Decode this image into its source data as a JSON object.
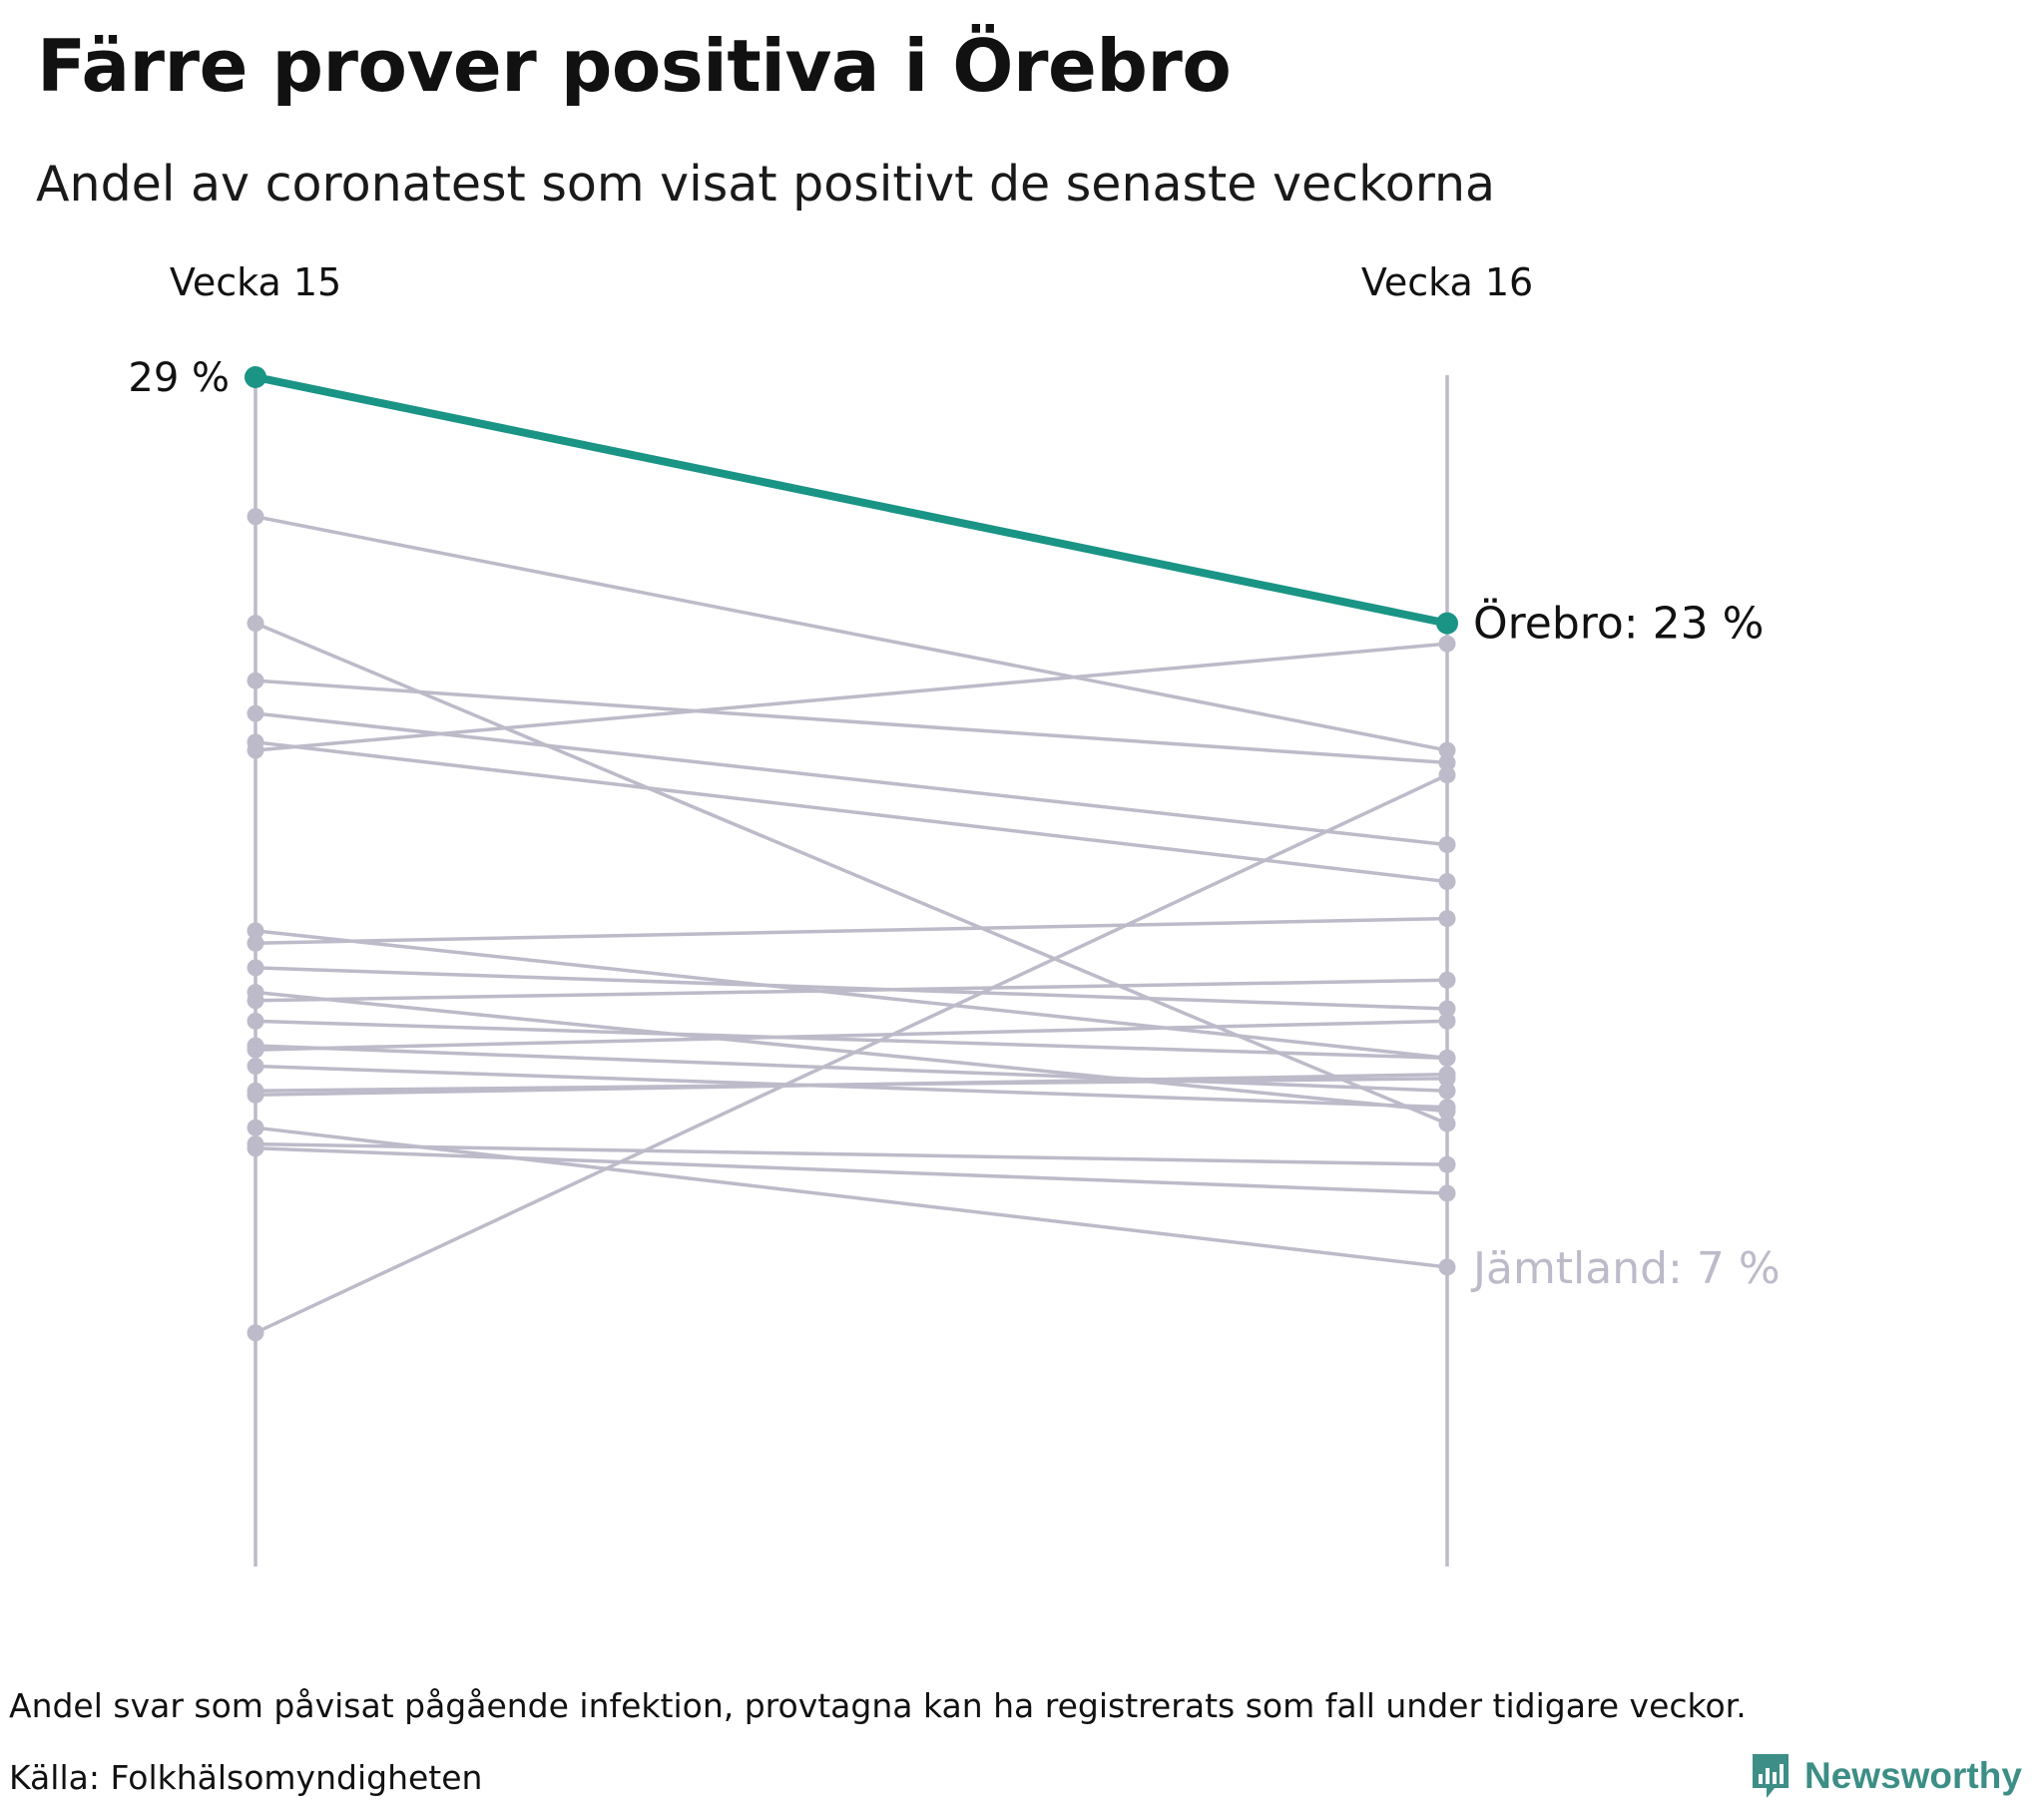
{
  "header": {
    "title": "Färre prover positiva i Örebro",
    "subtitle": "Andel av coronatest som visat positivt de senaste veckorna"
  },
  "footer": {
    "note": "Andel svar som påvisat pågående infektion, provtagna kan ha registrerats som fall under tidigare veckor.",
    "source": "Källa: Folkhälsomyndigheten",
    "brand": "Newsworthy"
  },
  "colors": {
    "highlight": "#1a9485",
    "other": "#bdbac9",
    "axis": "#bdbac9",
    "brand": "#3c8e86"
  },
  "chart_data": {
    "type": "slope",
    "title": "Färre prover positiva i Örebro",
    "subtitle": "Andel av coronatest som visat positivt de senaste veckorna",
    "x": [
      "Vecka 15",
      "Vecka 16"
    ],
    "ylim": [
      0,
      29
    ],
    "unit": "%",
    "start_label": "29 %",
    "highlight": {
      "name": "Örebro",
      "values": [
        29,
        23
      ],
      "label": "Örebro: 23 %"
    },
    "min_series": {
      "name": "Jämtland",
      "label": "Jämtland: 7 %"
    },
    "series": [
      {
        "values": [
          25.6,
          19.9
        ]
      },
      {
        "values": [
          23.0,
          10.8
        ]
      },
      {
        "values": [
          21.6,
          19.6
        ]
      },
      {
        "values": [
          20.8,
          17.6
        ]
      },
      {
        "values": [
          20.1,
          16.7
        ]
      },
      {
        "values": [
          19.9,
          22.5
        ]
      },
      {
        "values": [
          15.5,
          12.4
        ]
      },
      {
        "values": [
          15.2,
          15.8
        ]
      },
      {
        "values": [
          14.0,
          11.1
        ]
      },
      {
        "values": [
          13.8,
          14.3
        ]
      },
      {
        "values": [
          13.3,
          12.4
        ]
      },
      {
        "values": [
          12.7,
          11.6
        ]
      },
      {
        "values": [
          12.6,
          13.3
        ]
      },
      {
        "values": [
          11.5,
          12.0
        ]
      },
      {
        "values": [
          10.7,
          7.3
        ]
      },
      {
        "values": [
          14.6,
          13.6
        ]
      },
      {
        "values": [
          11.6,
          11.9
        ]
      },
      {
        "values": [
          10.3,
          9.8
        ]
      },
      {
        "values": [
          12.2,
          11.2
        ]
      },
      {
        "values": [
          5.7,
          19.3
        ]
      },
      {
        "values": [
          10.2,
          9.1
        ]
      }
    ]
  }
}
